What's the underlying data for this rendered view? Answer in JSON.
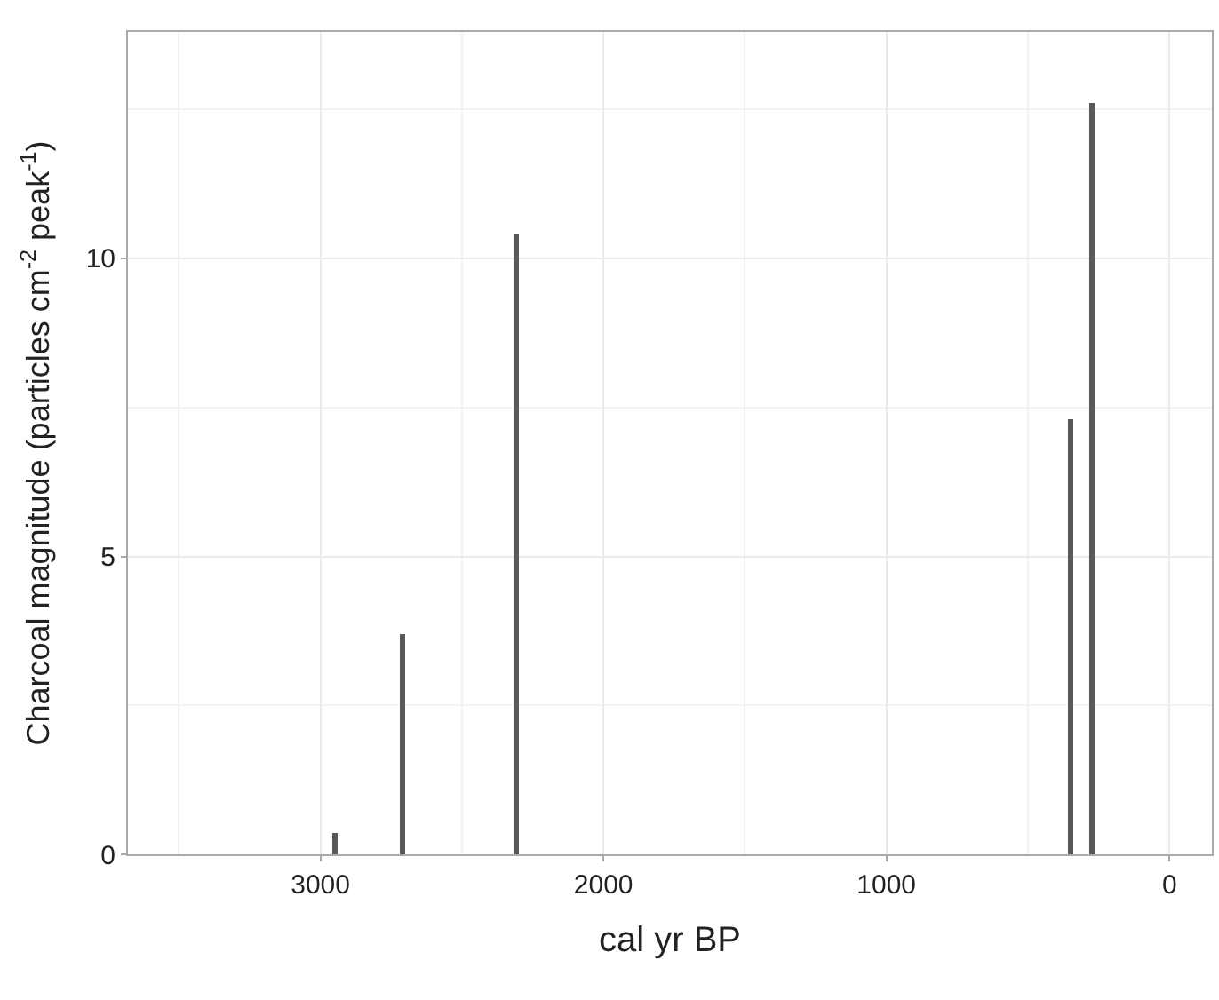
{
  "chart_data": {
    "type": "bar",
    "xlabel": "cal yr BP",
    "ylabel": "Charcoal magnitude (particles cm$^{-2}$ peak$^{-1}$)",
    "x": [
      2950,
      2710,
      2310,
      350,
      275
    ],
    "series": [
      {
        "color": "#595959",
        "values": [
          0.35,
          3.7,
          10.4,
          7.3,
          12.6
        ]
      }
    ],
    "xlim": [
      3680,
      -150
    ],
    "xticks": [
      3000,
      2000,
      1000,
      0
    ],
    "ylim": [
      0,
      13.8
    ],
    "yticks": [
      0,
      5,
      10
    ],
    "grid": true
  }
}
